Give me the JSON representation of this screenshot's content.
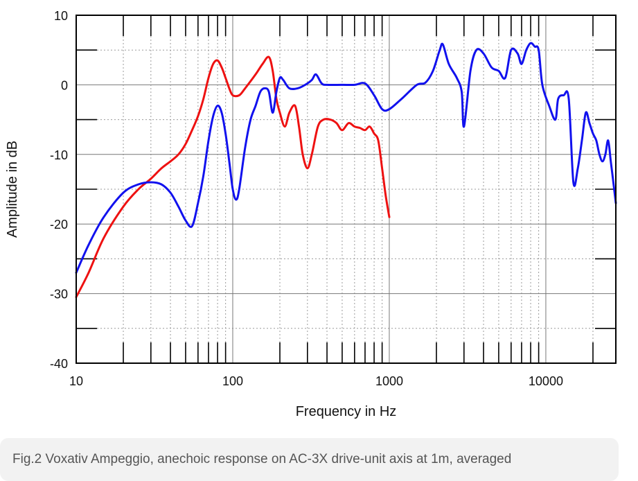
{
  "chart_data": {
    "type": "line",
    "xlabel": "Frequency in Hz",
    "ylabel": "Amplitude in dB",
    "x_scale": "log",
    "xlim": [
      10,
      28000
    ],
    "ylim": [
      -40,
      10
    ],
    "x_ticks": [
      {
        "value": 10,
        "label": "10"
      },
      {
        "value": 100,
        "label": "100"
      },
      {
        "value": 1000,
        "label": "1000"
      },
      {
        "value": 10000,
        "label": "10000"
      }
    ],
    "y_ticks": [
      {
        "value": 10,
        "label": "10"
      },
      {
        "value": 0,
        "label": "0"
      },
      {
        "value": -10,
        "label": "-10"
      },
      {
        "value": -20,
        "label": "-20"
      },
      {
        "value": -30,
        "label": "-30"
      },
      {
        "value": -40,
        "label": "-40"
      }
    ],
    "grid": true,
    "series": [
      {
        "color": "#ee1111",
        "points": [
          [
            10,
            -30.5
          ],
          [
            12,
            -27
          ],
          [
            15,
            -22
          ],
          [
            20,
            -17.5
          ],
          [
            25,
            -15
          ],
          [
            30,
            -13.5
          ],
          [
            35,
            -12
          ],
          [
            40,
            -11
          ],
          [
            45,
            -10
          ],
          [
            50,
            -8.5
          ],
          [
            55,
            -6.5
          ],
          [
            60,
            -4.5
          ],
          [
            65,
            -2
          ],
          [
            70,
            1
          ],
          [
            75,
            3
          ],
          [
            80,
            3.5
          ],
          [
            85,
            2.5
          ],
          [
            90,
            1
          ],
          [
            95,
            -0.5
          ],
          [
            100,
            -1.5
          ],
          [
            110,
            -1.5
          ],
          [
            120,
            -0.5
          ],
          [
            140,
            1.5
          ],
          [
            155,
            3
          ],
          [
            170,
            4
          ],
          [
            180,
            2
          ],
          [
            190,
            -2
          ],
          [
            200,
            -4
          ],
          [
            215,
            -6
          ],
          [
            230,
            -4
          ],
          [
            250,
            -3
          ],
          [
            265,
            -6
          ],
          [
            280,
            -10
          ],
          [
            300,
            -12
          ],
          [
            320,
            -10
          ],
          [
            350,
            -6
          ],
          [
            380,
            -5
          ],
          [
            420,
            -5
          ],
          [
            460,
            -5.5
          ],
          [
            500,
            -6.5
          ],
          [
            550,
            -5.5
          ],
          [
            600,
            -6
          ],
          [
            650,
            -6.2
          ],
          [
            700,
            -6.5
          ],
          [
            750,
            -6
          ],
          [
            800,
            -7
          ],
          [
            850,
            -8
          ],
          [
            900,
            -12
          ],
          [
            950,
            -16
          ],
          [
            1000,
            -19
          ]
        ]
      },
      {
        "color": "#1111ee",
        "points": [
          [
            10,
            -27
          ],
          [
            12,
            -23
          ],
          [
            15,
            -19
          ],
          [
            20,
            -15.5
          ],
          [
            25,
            -14.3
          ],
          [
            30,
            -14
          ],
          [
            35,
            -14.3
          ],
          [
            40,
            -15.5
          ],
          [
            45,
            -17.5
          ],
          [
            50,
            -19.5
          ],
          [
            55,
            -20.3
          ],
          [
            60,
            -17
          ],
          [
            65,
            -13
          ],
          [
            70,
            -8
          ],
          [
            75,
            -4.5
          ],
          [
            80,
            -3
          ],
          [
            85,
            -4
          ],
          [
            90,
            -7
          ],
          [
            95,
            -11
          ],
          [
            100,
            -15
          ],
          [
            105,
            -16.5
          ],
          [
            110,
            -15
          ],
          [
            120,
            -9
          ],
          [
            130,
            -5
          ],
          [
            140,
            -3
          ],
          [
            150,
            -1
          ],
          [
            160,
            -0.5
          ],
          [
            170,
            -1
          ],
          [
            180,
            -4
          ],
          [
            190,
            -1
          ],
          [
            200,
            1
          ],
          [
            210,
            0.7
          ],
          [
            230,
            -0.5
          ],
          [
            260,
            -0.5
          ],
          [
            290,
            0
          ],
          [
            320,
            0.7
          ],
          [
            340,
            1.5
          ],
          [
            370,
            0.2
          ],
          [
            400,
            0
          ],
          [
            500,
            0
          ],
          [
            600,
            0
          ],
          [
            700,
            0.2
          ],
          [
            800,
            -1.5
          ],
          [
            900,
            -3.5
          ],
          [
            1000,
            -3.5
          ],
          [
            1200,
            -2
          ],
          [
            1500,
            0
          ],
          [
            1700,
            0.3
          ],
          [
            1900,
            2
          ],
          [
            2100,
            5
          ],
          [
            2200,
            5.8
          ],
          [
            2400,
            3
          ],
          [
            2700,
            1
          ],
          [
            2900,
            -1
          ],
          [
            3000,
            -6
          ],
          [
            3300,
            2
          ],
          [
            3600,
            5
          ],
          [
            4000,
            4.5
          ],
          [
            4500,
            2.5
          ],
          [
            5000,
            2
          ],
          [
            5500,
            1
          ],
          [
            6000,
            5
          ],
          [
            6600,
            4.5
          ],
          [
            7000,
            3
          ],
          [
            7500,
            5
          ],
          [
            8000,
            6
          ],
          [
            8500,
            5.5
          ],
          [
            9000,
            5
          ],
          [
            9500,
            0
          ],
          [
            10500,
            -3
          ],
          [
            11500,
            -5
          ],
          [
            12000,
            -2
          ],
          [
            13000,
            -1.5
          ],
          [
            14000,
            -2
          ],
          [
            15000,
            -14
          ],
          [
            16000,
            -12
          ],
          [
            17000,
            -8
          ],
          [
            18000,
            -4
          ],
          [
            19000,
            -5.5
          ],
          [
            20000,
            -7
          ],
          [
            21000,
            -8
          ],
          [
            22000,
            -10
          ],
          [
            23000,
            -11
          ],
          [
            24000,
            -10
          ],
          [
            25000,
            -8
          ],
          [
            26000,
            -11
          ],
          [
            27000,
            -14
          ],
          [
            28000,
            -17
          ]
        ]
      }
    ]
  },
  "caption": "Fig.2 Voxativ Ampeggio, anechoic response on AC-3X drive-unit axis at 1m, averaged"
}
